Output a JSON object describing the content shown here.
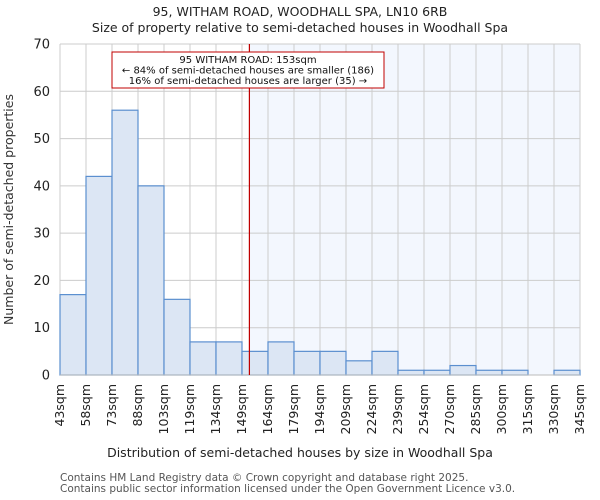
{
  "title_line1": "95, WITHAM ROAD, WOODHALL SPA, LN10 6RB",
  "title_line2": "Size of property relative to semi-detached houses in Woodhall Spa",
  "xlabel": "Distribution of semi-detached houses by size in Woodhall Spa",
  "ylabel": "Number of semi-detached properties",
  "annotation": {
    "line1": "95 WITHAM ROAD: 153sqm",
    "line2": "← 84% of semi-detached houses are smaller (186)",
    "line3": "16% of semi-detached houses are larger (35) →"
  },
  "footer": {
    "line1": "Contains HM Land Registry data © Crown copyright and database right 2025.",
    "line2": "Contains public sector information licensed under the Open Government Licence v3.0."
  },
  "colors": {
    "bar_fill": "#dce6f4",
    "bar_edge": "#5b8fcf",
    "highlight_bg": "#f3f7fe",
    "marker_line": "#c00000",
    "grid": "#cccccc"
  },
  "chart_data": {
    "type": "bar",
    "title": "95, WITHAM ROAD, WOODHALL SPA, LN10 6RB — Size of property relative to semi-detached houses in Woodhall Spa",
    "xlabel": "Distribution of semi-detached houses by size in Woodhall Spa",
    "ylabel": "Number of semi-detached properties",
    "categories": [
      "43sqm",
      "58sqm",
      "73sqm",
      "88sqm",
      "103sqm",
      "119sqm",
      "134sqm",
      "149sqm",
      "164sqm",
      "179sqm",
      "194sqm",
      "209sqm",
      "224sqm",
      "239sqm",
      "254sqm",
      "270sqm",
      "285sqm",
      "300sqm",
      "315sqm",
      "330sqm",
      "345sqm"
    ],
    "values": [
      17,
      42,
      56,
      40,
      16,
      7,
      7,
      5,
      7,
      5,
      5,
      3,
      5,
      1,
      1,
      2,
      1,
      1,
      0,
      1
    ],
    "ylim": [
      0,
      70
    ],
    "yticks": [
      0,
      10,
      20,
      30,
      40,
      50,
      60,
      70
    ],
    "grid": true,
    "marker": {
      "value": 153,
      "label": "95 WITHAM ROAD: 153sqm"
    }
  }
}
